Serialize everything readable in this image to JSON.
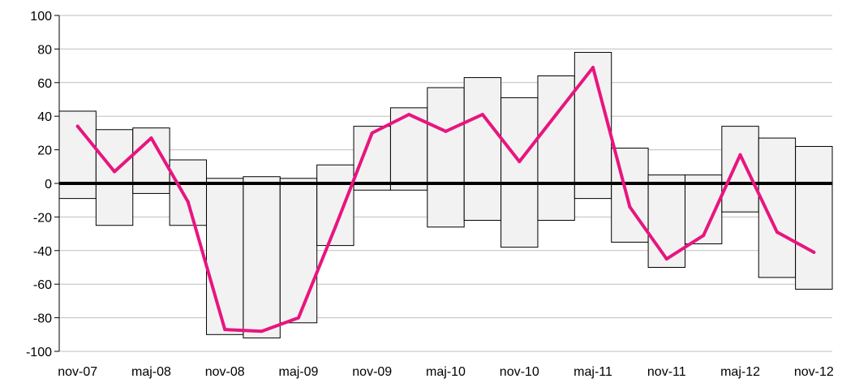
{
  "chart_data": {
    "type": "bar",
    "title": "",
    "xlabel": "",
    "ylabel": "",
    "ylim": [
      -100,
      100
    ],
    "y_ticks": [
      "100",
      "80",
      "60",
      "40",
      "20",
      "0",
      "-20",
      "-40",
      "-60",
      "-80",
      "-100"
    ],
    "x_tick_labels": [
      "nov-07",
      "maj-08",
      "nov-08",
      "maj-09",
      "nov-09",
      "maj-10",
      "nov-10",
      "maj-11",
      "nov-11",
      "maj-12",
      "nov-12"
    ],
    "grid": true,
    "legend": "none",
    "periods": 21,
    "range_bars": {
      "high": [
        43,
        32,
        33,
        14,
        3,
        4,
        3,
        11,
        34,
        45,
        57,
        63,
        51,
        64,
        78,
        21,
        5,
        5,
        34,
        27,
        22
      ],
      "low": [
        -9,
        -25,
        -6,
        -25,
        -90,
        -92,
        -83,
        -37,
        -4,
        -4,
        -26,
        -22,
        -38,
        -22,
        -9,
        -35,
        -50,
        -36,
        -17,
        -56,
        -63
      ]
    },
    "series": [
      {
        "values": [
          34,
          7,
          27,
          -11,
          -87,
          -88,
          -80,
          -26,
          30,
          41,
          31,
          41,
          13,
          41,
          69,
          -14,
          -45,
          -31,
          17,
          -29,
          -41
        ]
      }
    ],
    "colors": {
      "bar_fill": "#f2f2f2",
      "bar_stroke": "#000000",
      "line": "#e8157f",
      "grid": "#bfbfbf",
      "zero_line": "#000000"
    }
  }
}
